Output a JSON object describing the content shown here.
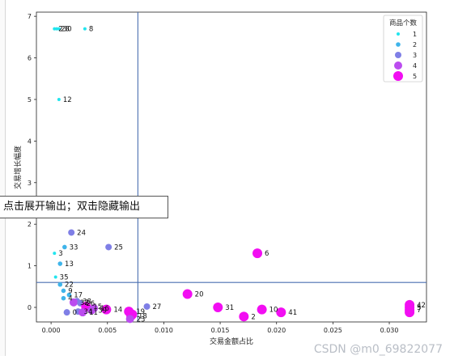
{
  "chart_data": {
    "type": "scatter",
    "xlabel": "交易金额占比",
    "ylabel": "交易增长幅度",
    "xlim": [
      -0.0013,
      0.0333
    ],
    "ylim": [
      -0.35,
      7.1
    ],
    "xticks": [
      0.0,
      0.005,
      0.01,
      0.015,
      0.02,
      0.025,
      0.03
    ],
    "xtick_labels": [
      "0.000",
      "0.005",
      "0.010",
      "0.015",
      "0.020",
      "0.025",
      "0.030"
    ],
    "yticks": [
      0,
      1,
      2,
      3,
      4,
      5,
      6,
      7
    ],
    "ytick_labels": [
      "0",
      "1",
      "2",
      "3",
      "4",
      "5",
      "6",
      "7"
    ],
    "hlines": [
      {
        "y": 0.6,
        "color": "#4a6fb0"
      }
    ],
    "vlines": [
      {
        "x": 0.0077,
        "color": "#4a6fb0"
      }
    ],
    "grid": false,
    "legend": {
      "title": "商品个数",
      "position": "top-right",
      "entries": [
        {
          "label": "1",
          "color": "#22e5ee"
        },
        {
          "label": "2",
          "color": "#3fb4ea"
        },
        {
          "label": "3",
          "color": "#7f7fe6"
        },
        {
          "label": "4",
          "color": "#bb4cef"
        },
        {
          "label": "5",
          "color": "#f20ef2"
        }
      ]
    },
    "points": [
      {
        "x": 0.0003,
        "y": 6.7,
        "size": 1,
        "label": "2"
      },
      {
        "x": 0.0005,
        "y": 6.7,
        "size": 1,
        "label": "28"
      },
      {
        "x": 0.0007,
        "y": 6.7,
        "size": 1,
        "label": "30"
      },
      {
        "x": 0.003,
        "y": 6.7,
        "size": 1,
        "label": "8"
      },
      {
        "x": 0.0007,
        "y": 5.0,
        "size": 1,
        "label": "12"
      },
      {
        "x": 0.0018,
        "y": 1.8,
        "size": 3,
        "label": "24"
      },
      {
        "x": 0.0012,
        "y": 1.45,
        "size": 2,
        "label": "33"
      },
      {
        "x": 0.0051,
        "y": 1.45,
        "size": 3,
        "label": "25"
      },
      {
        "x": 0.0003,
        "y": 1.3,
        "size": 1,
        "label": "3"
      },
      {
        "x": 0.0008,
        "y": 1.05,
        "size": 2,
        "label": "13"
      },
      {
        "x": 0.0183,
        "y": 1.3,
        "size": 5,
        "label": "6"
      },
      {
        "x": 0.0004,
        "y": 0.73,
        "size": 1,
        "label": "35"
      },
      {
        "x": 0.0008,
        "y": 0.55,
        "size": 2,
        "label": "22"
      },
      {
        "x": 0.0011,
        "y": 0.4,
        "size": 2,
        "label": "9"
      },
      {
        "x": 0.0016,
        "y": 0.3,
        "size": 2,
        "label": "17"
      },
      {
        "x": 0.0023,
        "y": 0.15,
        "size": 3,
        "label": "38"
      },
      {
        "x": 0.0011,
        "y": 0.22,
        "size": 2,
        "label": "4"
      },
      {
        "x": 0.002,
        "y": 0.12,
        "size": 4,
        "label": "32"
      },
      {
        "x": 0.0026,
        "y": 0.1,
        "size": 3,
        "label": "26"
      },
      {
        "x": 0.0031,
        "y": 0.02,
        "size": 5,
        "label": "15"
      },
      {
        "x": 0.0038,
        "y": -0.02,
        "size": 4,
        "label": "16"
      },
      {
        "x": 0.0049,
        "y": -0.05,
        "size": 5,
        "label": "14"
      },
      {
        "x": 0.0014,
        "y": -0.12,
        "size": 3,
        "label": "0"
      },
      {
        "x": 0.0024,
        "y": -0.1,
        "size": 3,
        "label": "34"
      },
      {
        "x": 0.0028,
        "y": -0.12,
        "size": 4,
        "label": "11"
      },
      {
        "x": 0.0036,
        "y": -0.07,
        "size": 4,
        "label": "39"
      },
      {
        "x": 0.0069,
        "y": -0.1,
        "size": 5,
        "label": "19"
      },
      {
        "x": 0.0071,
        "y": -0.2,
        "size": 5,
        "label": "18"
      },
      {
        "x": 0.0072,
        "y": -0.17,
        "size": 5,
        "label": ""
      },
      {
        "x": 0.007,
        "y": -0.28,
        "size": 4,
        "label": "23"
      },
      {
        "x": 0.0085,
        "y": 0.02,
        "size": 3,
        "label": "27"
      },
      {
        "x": 0.0121,
        "y": 0.32,
        "size": 5,
        "label": "20"
      },
      {
        "x": 0.0148,
        "y": 0.0,
        "size": 5,
        "label": "31"
      },
      {
        "x": 0.0171,
        "y": -0.22,
        "size": 5,
        "label": "2"
      },
      {
        "x": 0.0187,
        "y": -0.05,
        "size": 5,
        "label": "10"
      },
      {
        "x": 0.0204,
        "y": -0.12,
        "size": 5,
        "label": "41"
      },
      {
        "x": 0.0318,
        "y": 0.06,
        "size": 5,
        "label": "42"
      },
      {
        "x": 0.0318,
        "y": 0.0,
        "size": 5,
        "label": "5"
      },
      {
        "x": 0.0318,
        "y": -0.06,
        "size": 5,
        "label": "7"
      },
      {
        "x": 0.0318,
        "y": -0.12,
        "size": 5,
        "label": ""
      }
    ]
  },
  "overlay": {
    "tooltip_text": "点击展开输出；双击隐藏输出"
  },
  "watermark": "CSDN @m0_69822077"
}
